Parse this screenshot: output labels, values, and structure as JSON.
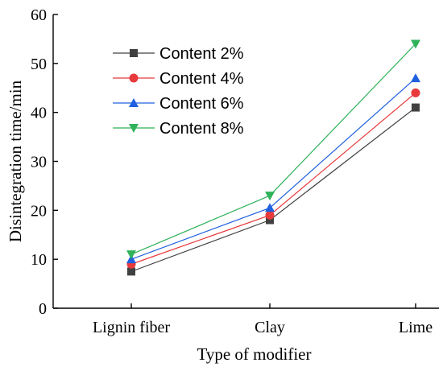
{
  "chart_data": {
    "type": "line",
    "categories": [
      "Lignin fiber",
      "Clay",
      "Lime"
    ],
    "xlabel": "Type of modifier",
    "ylabel": "Disintegration time/min",
    "ylim": [
      0,
      60
    ],
    "yticks": [
      0,
      10,
      20,
      30,
      40,
      50,
      60
    ],
    "grid": false,
    "legend_position": "top-left",
    "series": [
      {
        "name": "Content 2%",
        "values": [
          7.5,
          18,
          41
        ],
        "color": "#404040",
        "marker": "square"
      },
      {
        "name": "Content 4%",
        "values": [
          9,
          19,
          44
        ],
        "color": "#e8393b",
        "marker": "circle"
      },
      {
        "name": "Content 6%",
        "values": [
          10,
          20.5,
          47
        ],
        "color": "#2060e0",
        "marker": "triangle-up"
      },
      {
        "name": "Content 8%",
        "values": [
          11,
          23,
          54
        ],
        "color": "#2fb25a",
        "marker": "triangle-down"
      }
    ]
  }
}
